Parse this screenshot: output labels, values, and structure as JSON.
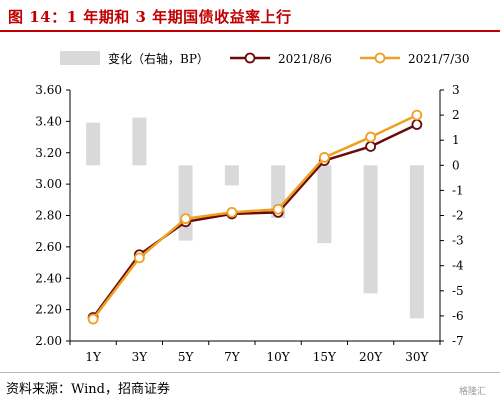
{
  "title": "图 14：1 年期和 3 年期国债收益率上行",
  "source": "资料来源：Wind，招商证券",
  "watermark": "格隆汇",
  "chart_data": {
    "type": "bar+line",
    "categories": [
      "1Y",
      "3Y",
      "5Y",
      "7Y",
      "10Y",
      "15Y",
      "20Y",
      "30Y"
    ],
    "series": [
      {
        "name": "变化（右轴，BP）",
        "kind": "bar",
        "axis": "right",
        "color": "#d9d9d9",
        "values": [
          1.7,
          1.9,
          -3.0,
          -0.8,
          -2.1,
          -3.1,
          -5.1,
          -6.1
        ]
      },
      {
        "name": "2021/8/6",
        "kind": "line",
        "axis": "left",
        "color": "#6b0a0a",
        "values": [
          2.15,
          2.55,
          2.76,
          2.81,
          2.82,
          3.15,
          3.24,
          3.38
        ]
      },
      {
        "name": "2021/7/30",
        "kind": "line",
        "axis": "left",
        "color": "#f0a020",
        "values": [
          2.14,
          2.53,
          2.78,
          2.82,
          2.84,
          3.17,
          3.3,
          3.44
        ]
      }
    ],
    "y_left": {
      "min": 2.0,
      "max": 3.6,
      "step": 0.2,
      "ticks": [
        "2.00",
        "2.20",
        "2.40",
        "2.60",
        "2.80",
        "3.00",
        "3.20",
        "3.40",
        "3.60"
      ]
    },
    "y_right": {
      "min": -7,
      "max": 3,
      "step": 1,
      "ticks": [
        "-7",
        "-6",
        "-5",
        "-4",
        "-3",
        "-2",
        "-1",
        "0",
        "1",
        "2",
        "3"
      ]
    },
    "legend_position": "top"
  }
}
